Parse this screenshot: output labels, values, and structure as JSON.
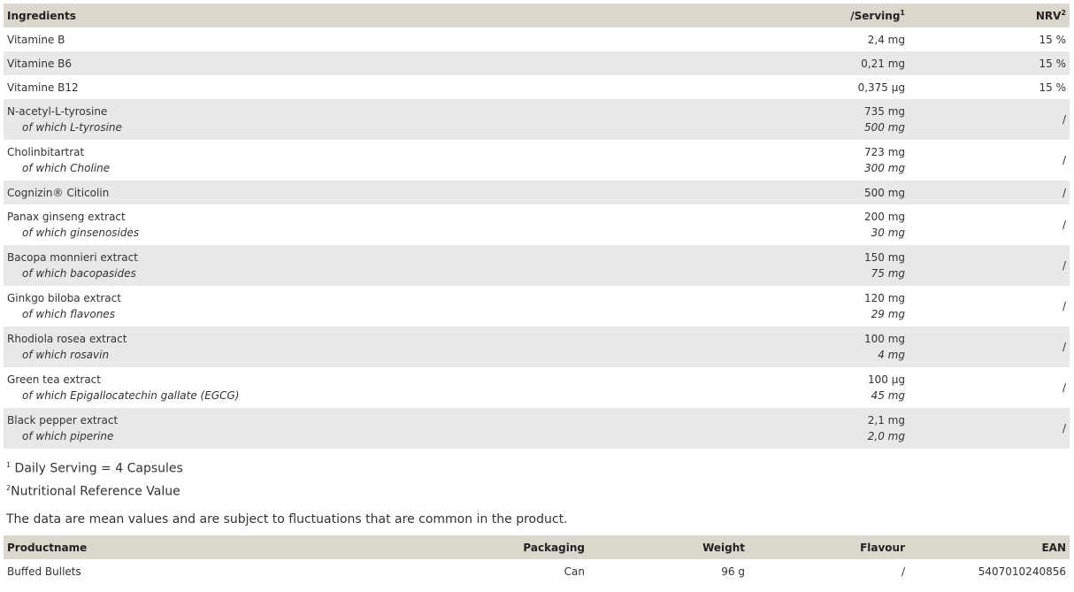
{
  "ingredients": {
    "headers": {
      "name": "Ingredients",
      "serving": "/Serving",
      "serving_sup": "1",
      "nrv": "NRV",
      "nrv_sup": "2"
    },
    "rows": [
      {
        "name": "Vitamine B",
        "sub": "",
        "serving": "2,4 mg",
        "sub_serving": "",
        "nrv": "15 %"
      },
      {
        "name": "Vitamine B6",
        "sub": "",
        "serving": "0,21 mg",
        "sub_serving": "",
        "nrv": "15 %"
      },
      {
        "name": "Vitamine B12",
        "sub": "",
        "serving": "0,375 µg",
        "sub_serving": "",
        "nrv": "15 %"
      },
      {
        "name": "N-acetyl-L-tyrosine",
        "sub": "of which L-tyrosine",
        "serving": "735 mg",
        "sub_serving": "500 mg",
        "nrv": "/"
      },
      {
        "name": "Cholinbitartrat",
        "sub": "of which Choline",
        "serving": "723 mg",
        "sub_serving": "300 mg",
        "nrv": "/"
      },
      {
        "name": "Cognizin® Citicolin",
        "sub": "",
        "serving": "500 mg",
        "sub_serving": "",
        "nrv": "/"
      },
      {
        "name": "Panax ginseng extract",
        "sub": "of which ginsenosides",
        "serving": "200 mg",
        "sub_serving": "30 mg",
        "nrv": "/"
      },
      {
        "name": "Bacopa monnieri extract",
        "sub": "of which bacopasides",
        "serving": "150 mg",
        "sub_serving": "75 mg",
        "nrv": "/"
      },
      {
        "name": "Ginkgo biloba extract",
        "sub": "of which flavones",
        "serving": "120 mg",
        "sub_serving": "29 mg",
        "nrv": "/"
      },
      {
        "name": "Rhodiola rosea extract",
        "sub": "of which rosavin",
        "serving": "100 mg",
        "sub_serving": "4 mg",
        "nrv": "/"
      },
      {
        "name": "Green tea extract",
        "sub": "of which Epigallocatechin gallate (EGCG)",
        "serving": "100 µg",
        "sub_serving": "45 mg",
        "nrv": "/"
      },
      {
        "name": "Black pepper extract",
        "sub": "of which piperine",
        "serving": "2,1 mg",
        "sub_serving": "2,0 mg",
        "nrv": "/"
      }
    ]
  },
  "notes": [
    {
      "sup": "1",
      "text": "Daily Serving = 4 Capsules"
    },
    {
      "sup": "2",
      "text": "Nutritional Reference Value"
    }
  ],
  "disclaimer": "The data are mean values and are subject to fluctuations that are common in the product.",
  "product": {
    "headers": [
      "Productname",
      "Packaging",
      "Weight",
      "Flavour",
      "EAN"
    ],
    "row": [
      "Buffed Bullets",
      "Can",
      "96 g",
      "/",
      "5407010240856"
    ]
  }
}
